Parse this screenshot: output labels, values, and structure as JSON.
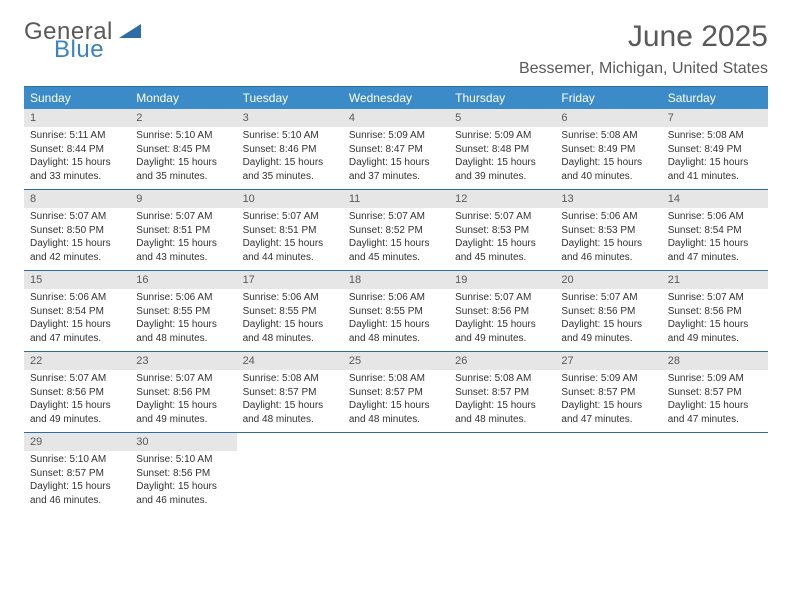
{
  "brand": {
    "line1": "General",
    "line2": "Blue",
    "logo_color_general": "#595959",
    "logo_color_blue": "#3b82c4",
    "triangle_color": "#2e6da4"
  },
  "title": "June 2025",
  "location": "Bessemer, Michigan, United States",
  "colors": {
    "header_bg": "#3b8bc9",
    "header_text": "#ffffff",
    "rule": "#2e6da4",
    "datebar_bg": "#e6e6e6",
    "datebar_text": "#595959",
    "body_text": "#333333",
    "page_bg": "#ffffff"
  },
  "fonts": {
    "title_size_pt": 22,
    "location_size_pt": 12,
    "dayname_size_pt": 9,
    "date_size_pt": 8,
    "body_size_pt": 7.5
  },
  "daynames": [
    "Sunday",
    "Monday",
    "Tuesday",
    "Wednesday",
    "Thursday",
    "Friday",
    "Saturday"
  ],
  "weeks": [
    [
      {
        "date": "1",
        "sunrise": "Sunrise: 5:11 AM",
        "sunset": "Sunset: 8:44 PM",
        "day1": "Daylight: 15 hours",
        "day2": "and 33 minutes."
      },
      {
        "date": "2",
        "sunrise": "Sunrise: 5:10 AM",
        "sunset": "Sunset: 8:45 PM",
        "day1": "Daylight: 15 hours",
        "day2": "and 35 minutes."
      },
      {
        "date": "3",
        "sunrise": "Sunrise: 5:10 AM",
        "sunset": "Sunset: 8:46 PM",
        "day1": "Daylight: 15 hours",
        "day2": "and 35 minutes."
      },
      {
        "date": "4",
        "sunrise": "Sunrise: 5:09 AM",
        "sunset": "Sunset: 8:47 PM",
        "day1": "Daylight: 15 hours",
        "day2": "and 37 minutes."
      },
      {
        "date": "5",
        "sunrise": "Sunrise: 5:09 AM",
        "sunset": "Sunset: 8:48 PM",
        "day1": "Daylight: 15 hours",
        "day2": "and 39 minutes."
      },
      {
        "date": "6",
        "sunrise": "Sunrise: 5:08 AM",
        "sunset": "Sunset: 8:49 PM",
        "day1": "Daylight: 15 hours",
        "day2": "and 40 minutes."
      },
      {
        "date": "7",
        "sunrise": "Sunrise: 5:08 AM",
        "sunset": "Sunset: 8:49 PM",
        "day1": "Daylight: 15 hours",
        "day2": "and 41 minutes."
      }
    ],
    [
      {
        "date": "8",
        "sunrise": "Sunrise: 5:07 AM",
        "sunset": "Sunset: 8:50 PM",
        "day1": "Daylight: 15 hours",
        "day2": "and 42 minutes."
      },
      {
        "date": "9",
        "sunrise": "Sunrise: 5:07 AM",
        "sunset": "Sunset: 8:51 PM",
        "day1": "Daylight: 15 hours",
        "day2": "and 43 minutes."
      },
      {
        "date": "10",
        "sunrise": "Sunrise: 5:07 AM",
        "sunset": "Sunset: 8:51 PM",
        "day1": "Daylight: 15 hours",
        "day2": "and 44 minutes."
      },
      {
        "date": "11",
        "sunrise": "Sunrise: 5:07 AM",
        "sunset": "Sunset: 8:52 PM",
        "day1": "Daylight: 15 hours",
        "day2": "and 45 minutes."
      },
      {
        "date": "12",
        "sunrise": "Sunrise: 5:07 AM",
        "sunset": "Sunset: 8:53 PM",
        "day1": "Daylight: 15 hours",
        "day2": "and 45 minutes."
      },
      {
        "date": "13",
        "sunrise": "Sunrise: 5:06 AM",
        "sunset": "Sunset: 8:53 PM",
        "day1": "Daylight: 15 hours",
        "day2": "and 46 minutes."
      },
      {
        "date": "14",
        "sunrise": "Sunrise: 5:06 AM",
        "sunset": "Sunset: 8:54 PM",
        "day1": "Daylight: 15 hours",
        "day2": "and 47 minutes."
      }
    ],
    [
      {
        "date": "15",
        "sunrise": "Sunrise: 5:06 AM",
        "sunset": "Sunset: 8:54 PM",
        "day1": "Daylight: 15 hours",
        "day2": "and 47 minutes."
      },
      {
        "date": "16",
        "sunrise": "Sunrise: 5:06 AM",
        "sunset": "Sunset: 8:55 PM",
        "day1": "Daylight: 15 hours",
        "day2": "and 48 minutes."
      },
      {
        "date": "17",
        "sunrise": "Sunrise: 5:06 AM",
        "sunset": "Sunset: 8:55 PM",
        "day1": "Daylight: 15 hours",
        "day2": "and 48 minutes."
      },
      {
        "date": "18",
        "sunrise": "Sunrise: 5:06 AM",
        "sunset": "Sunset: 8:55 PM",
        "day1": "Daylight: 15 hours",
        "day2": "and 48 minutes."
      },
      {
        "date": "19",
        "sunrise": "Sunrise: 5:07 AM",
        "sunset": "Sunset: 8:56 PM",
        "day1": "Daylight: 15 hours",
        "day2": "and 49 minutes."
      },
      {
        "date": "20",
        "sunrise": "Sunrise: 5:07 AM",
        "sunset": "Sunset: 8:56 PM",
        "day1": "Daylight: 15 hours",
        "day2": "and 49 minutes."
      },
      {
        "date": "21",
        "sunrise": "Sunrise: 5:07 AM",
        "sunset": "Sunset: 8:56 PM",
        "day1": "Daylight: 15 hours",
        "day2": "and 49 minutes."
      }
    ],
    [
      {
        "date": "22",
        "sunrise": "Sunrise: 5:07 AM",
        "sunset": "Sunset: 8:56 PM",
        "day1": "Daylight: 15 hours",
        "day2": "and 49 minutes."
      },
      {
        "date": "23",
        "sunrise": "Sunrise: 5:07 AM",
        "sunset": "Sunset: 8:56 PM",
        "day1": "Daylight: 15 hours",
        "day2": "and 49 minutes."
      },
      {
        "date": "24",
        "sunrise": "Sunrise: 5:08 AM",
        "sunset": "Sunset: 8:57 PM",
        "day1": "Daylight: 15 hours",
        "day2": "and 48 minutes."
      },
      {
        "date": "25",
        "sunrise": "Sunrise: 5:08 AM",
        "sunset": "Sunset: 8:57 PM",
        "day1": "Daylight: 15 hours",
        "day2": "and 48 minutes."
      },
      {
        "date": "26",
        "sunrise": "Sunrise: 5:08 AM",
        "sunset": "Sunset: 8:57 PM",
        "day1": "Daylight: 15 hours",
        "day2": "and 48 minutes."
      },
      {
        "date": "27",
        "sunrise": "Sunrise: 5:09 AM",
        "sunset": "Sunset: 8:57 PM",
        "day1": "Daylight: 15 hours",
        "day2": "and 47 minutes."
      },
      {
        "date": "28",
        "sunrise": "Sunrise: 5:09 AM",
        "sunset": "Sunset: 8:57 PM",
        "day1": "Daylight: 15 hours",
        "day2": "and 47 minutes."
      }
    ],
    [
      {
        "date": "29",
        "sunrise": "Sunrise: 5:10 AM",
        "sunset": "Sunset: 8:57 PM",
        "day1": "Daylight: 15 hours",
        "day2": "and 46 minutes."
      },
      {
        "date": "30",
        "sunrise": "Sunrise: 5:10 AM",
        "sunset": "Sunset: 8:56 PM",
        "day1": "Daylight: 15 hours",
        "day2": "and 46 minutes."
      },
      null,
      null,
      null,
      null,
      null
    ]
  ]
}
